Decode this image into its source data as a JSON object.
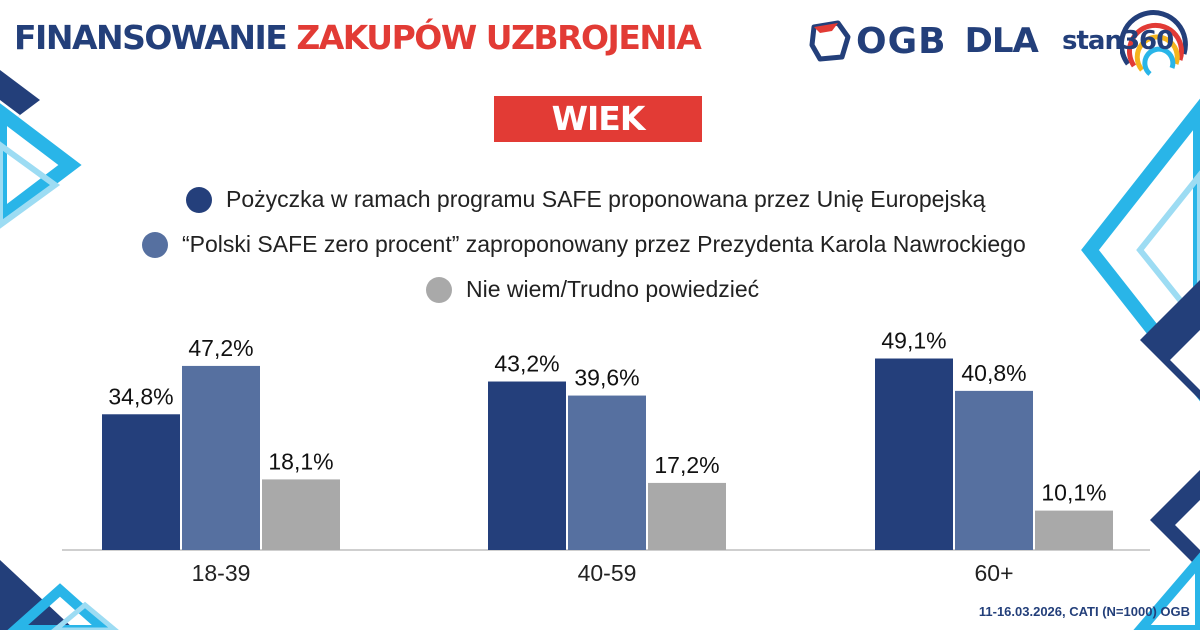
{
  "header": {
    "title_part1": "FINANSOWANIE",
    "title_part2": "ZAKUPÓW UZBROJENIA",
    "logo_ogb": "OGB",
    "logo_dla": "DLA",
    "logo_stan": "stan360",
    "subtitle_badge": "WIEK"
  },
  "colors": {
    "navy": "#233f7a",
    "red": "#e23b35",
    "series": [
      "#243f7b",
      "#5670a0",
      "#a9a9a9"
    ]
  },
  "chart_data": {
    "type": "bar",
    "categories": [
      "18-39",
      "40-59",
      "60+"
    ],
    "series": [
      {
        "name": "Pożyczka w ramach programu SAFE proponowana przez Unię Europejską",
        "values": [
          34.8,
          43.2,
          49.1
        ],
        "labels": [
          "34,8%",
          "43,2%",
          "49,1%"
        ]
      },
      {
        "name": "“Polski SAFE zero procent” zaproponowany przez Prezydenta Karola Nawrockiego",
        "values": [
          47.2,
          39.6,
          40.8
        ],
        "labels": [
          "47,2%",
          "39,6%",
          "40,8%"
        ]
      },
      {
        "name": "Nie wiem/Trudno powiedzieć",
        "values": [
          18.1,
          17.2,
          10.1
        ],
        "labels": [
          "18,1%",
          "17,2%",
          "10,1%"
        ]
      }
    ],
    "legend_position": "top-center",
    "grid": false
  },
  "footer": {
    "source": "11-16.03.2026, CATI (N=1000) OGB"
  }
}
